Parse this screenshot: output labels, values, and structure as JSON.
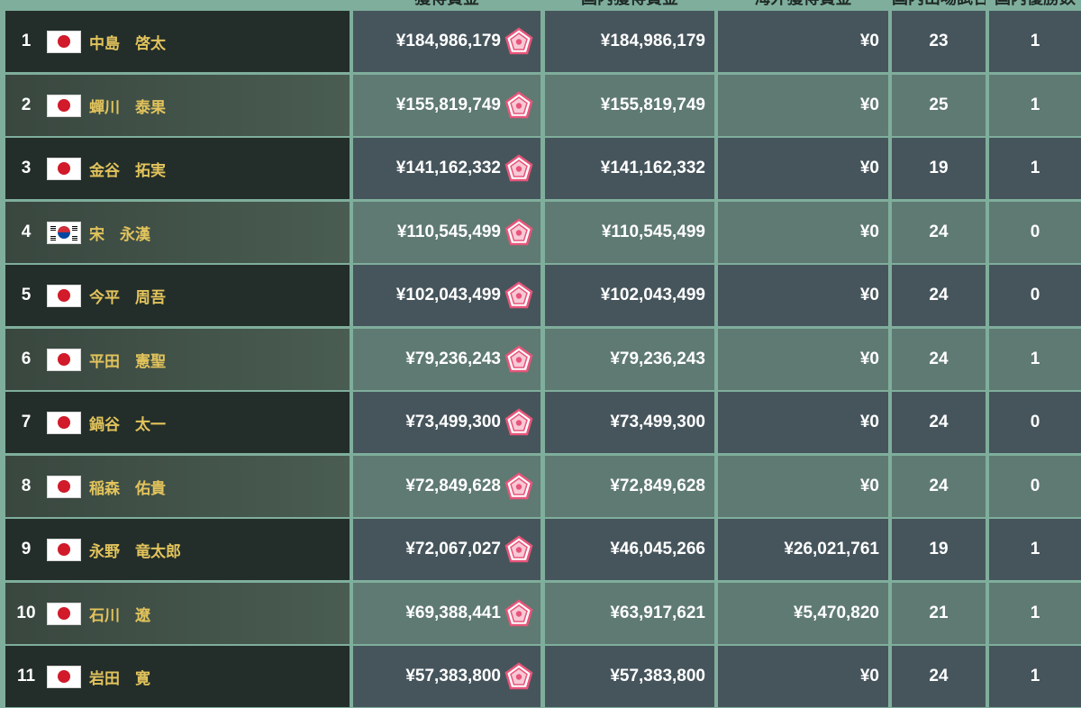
{
  "header": {
    "columns": [
      "獲得賞金",
      "国内獲得賞金",
      "海外獲得賞金",
      "国内出場試合数",
      "国内優勝数"
    ]
  },
  "icons": {
    "badge": "pentagon-emblem-icon",
    "flag_jp": "japan-flag-icon",
    "flag_kr": "korea-flag-icon"
  },
  "colors": {
    "background": "#7fae9c",
    "name_text": "#e2c35c",
    "badge": "#e8557a"
  },
  "rows": [
    {
      "rank": "1",
      "flag": "jp",
      "name": "中島　啓太",
      "total": "¥184,986,179",
      "domestic": "¥184,986,179",
      "overseas": "¥0",
      "events": "23",
      "wins": "1"
    },
    {
      "rank": "2",
      "flag": "jp",
      "name": "蟬川　泰果",
      "total": "¥155,819,749",
      "domestic": "¥155,819,749",
      "overseas": "¥0",
      "events": "25",
      "wins": "1"
    },
    {
      "rank": "3",
      "flag": "jp",
      "name": "金谷　拓実",
      "total": "¥141,162,332",
      "domestic": "¥141,162,332",
      "overseas": "¥0",
      "events": "19",
      "wins": "1"
    },
    {
      "rank": "4",
      "flag": "kr",
      "name": "宋　永漢",
      "total": "¥110,545,499",
      "domestic": "¥110,545,499",
      "overseas": "¥0",
      "events": "24",
      "wins": "0"
    },
    {
      "rank": "5",
      "flag": "jp",
      "name": "今平　周吾",
      "total": "¥102,043,499",
      "domestic": "¥102,043,499",
      "overseas": "¥0",
      "events": "24",
      "wins": "0"
    },
    {
      "rank": "6",
      "flag": "jp",
      "name": "平田　憲聖",
      "total": "¥79,236,243",
      "domestic": "¥79,236,243",
      "overseas": "¥0",
      "events": "24",
      "wins": "1"
    },
    {
      "rank": "7",
      "flag": "jp",
      "name": "鍋谷　太一",
      "total": "¥73,499,300",
      "domestic": "¥73,499,300",
      "overseas": "¥0",
      "events": "24",
      "wins": "0"
    },
    {
      "rank": "8",
      "flag": "jp",
      "name": "稲森　佑貴",
      "total": "¥72,849,628",
      "domestic": "¥72,849,628",
      "overseas": "¥0",
      "events": "24",
      "wins": "0"
    },
    {
      "rank": "9",
      "flag": "jp",
      "name": "永野　竜太郎",
      "total": "¥72,067,027",
      "domestic": "¥46,045,266",
      "overseas": "¥26,021,761",
      "events": "19",
      "wins": "1"
    },
    {
      "rank": "10",
      "flag": "jp",
      "name": "石川　遼",
      "total": "¥69,388,441",
      "domestic": "¥63,917,621",
      "overseas": "¥5,470,820",
      "events": "21",
      "wins": "1"
    },
    {
      "rank": "11",
      "flag": "jp",
      "name": "岩田　寛",
      "total": "¥57,383,800",
      "domestic": "¥57,383,800",
      "overseas": "¥0",
      "events": "24",
      "wins": "1"
    }
  ]
}
